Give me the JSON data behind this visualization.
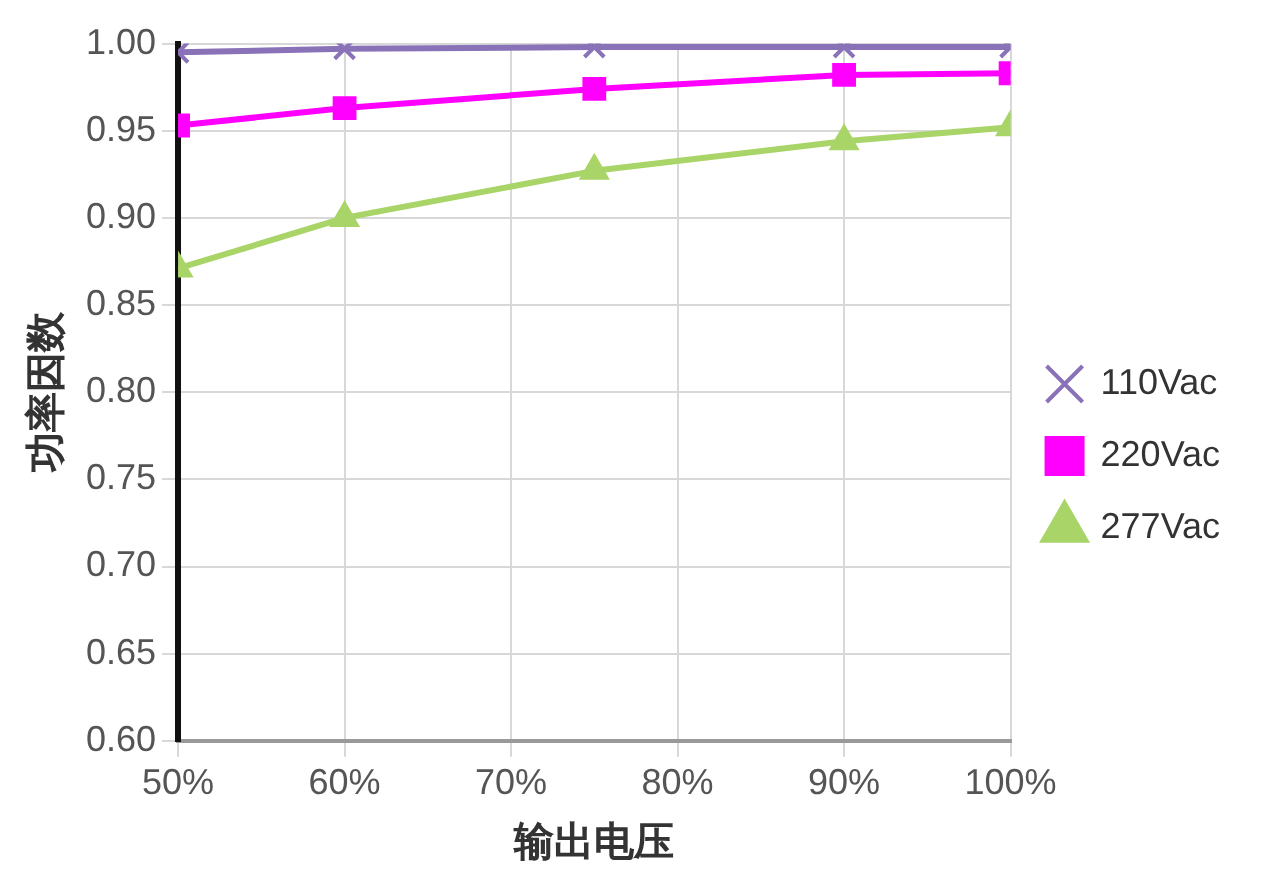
{
  "chart_data": {
    "type": "line",
    "xlabel": "输出电压",
    "ylabel": "功率因数",
    "x": [
      50,
      60,
      75,
      90,
      100
    ],
    "series": [
      {
        "name": "110Vac",
        "color": "#8a72b8",
        "values": [
          0.995,
          0.997,
          0.998,
          0.998,
          0.998
        ],
        "marker": "cross"
      },
      {
        "name": "220Vac",
        "color": "#ff00ff",
        "values": [
          0.953,
          0.963,
          0.974,
          0.982,
          0.983
        ],
        "marker": "square"
      },
      {
        "name": "277Vac",
        "color": "#a8d468",
        "values": [
          0.871,
          0.9,
          0.927,
          0.944,
          0.952
        ],
        "marker": "triangle"
      }
    ],
    "xlim": [
      50,
      100
    ],
    "xticks": [
      {
        "value": 50,
        "label": "50%"
      },
      {
        "value": 60,
        "label": "60%"
      },
      {
        "value": 70,
        "label": "70%"
      },
      {
        "value": 80,
        "label": "80%"
      },
      {
        "value": 90,
        "label": "90%"
      },
      {
        "value": 100,
        "label": "100%"
      }
    ],
    "ylim": [
      0.6,
      1.0
    ],
    "yticks": [
      {
        "value": 0.6,
        "label": "0.60"
      },
      {
        "value": 0.65,
        "label": "0.65"
      },
      {
        "value": 0.7,
        "label": "0.70"
      },
      {
        "value": 0.75,
        "label": "0.75"
      },
      {
        "value": 0.8,
        "label": "0.80"
      },
      {
        "value": 0.85,
        "label": "0.85"
      },
      {
        "value": 0.9,
        "label": "0.90"
      },
      {
        "value": 0.95,
        "label": "0.95"
      },
      {
        "value": 1.0,
        "label": "1.00"
      }
    ],
    "grid": true,
    "legend": "right"
  }
}
